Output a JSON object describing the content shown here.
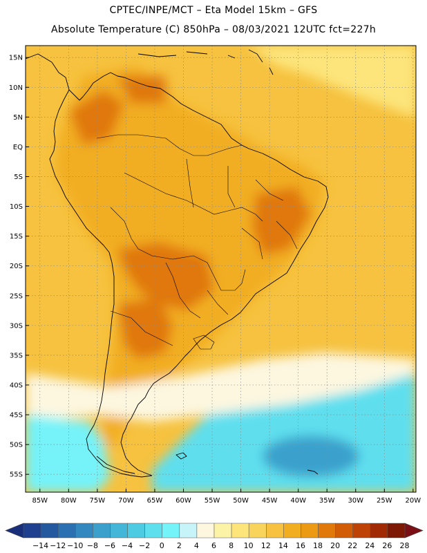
{
  "header": {
    "line1": "CPTEC/INPE/MCT –  Eta Model 15km – GFS",
    "line2": "Absolute Temperature (C) 850hPa – 08/03/2021 12UTC fct=227h"
  },
  "axes": {
    "lat_labels": [
      "15N",
      "10N",
      "5N",
      "EQ",
      "5S",
      "10S",
      "15S",
      "20S",
      "25S",
      "30S",
      "35S",
      "40S",
      "45S",
      "50S",
      "55S"
    ],
    "lon_labels": [
      "85W",
      "80W",
      "75W",
      "70W",
      "65W",
      "60W",
      "55W",
      "50W",
      "45W",
      "40W",
      "35W",
      "30W",
      "25W",
      "20W"
    ]
  },
  "colorbar": {
    "labels": [
      "-14",
      "-12",
      "-10",
      "-8",
      "-6",
      "-4",
      "-2",
      "0",
      "2",
      "4",
      "6",
      "8",
      "10",
      "12",
      "14",
      "16",
      "18",
      "20",
      "22",
      "24",
      "26",
      "28"
    ],
    "colors": [
      "#1f3f8f",
      "#24589f",
      "#2b70b0",
      "#3388bf",
      "#3ba0cc",
      "#44b6d8",
      "#4ccbe3",
      "#5edfee",
      "#74f3f9",
      "#c6f4f9",
      "#fdf7e0",
      "#fdf3a6",
      "#fde57c",
      "#f9d45c",
      "#f6c23f",
      "#f2ae21",
      "#ec9a13",
      "#e0780a",
      "#d25c06",
      "#be4206",
      "#a12a05",
      "#7c1803"
    ],
    "arrow_low": "#1a2f7a",
    "arrow_high": "#7a0f16"
  },
  "field_colors": {
    "ocean_yellow": "#f6c23f",
    "land_orange": "#f2ae21",
    "hot_orange": "#e0780a",
    "warm_yellow": "#fde57c",
    "cream": "#fdf7e0",
    "cyan": "#5edfee",
    "light_cyan": "#74f3f9",
    "blue": "#3ba0cc"
  }
}
